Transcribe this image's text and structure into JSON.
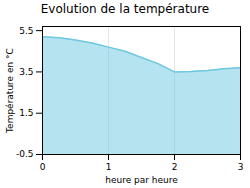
{
  "chart_data": {
    "type": "area",
    "title": "Evolution de la température",
    "xlabel": "heure par heure",
    "ylabel": "Température en °C",
    "x": [
      0,
      0.25,
      0.5,
      0.75,
      1.0,
      1.25,
      1.5,
      1.75,
      2.0,
      2.25,
      2.5,
      2.75,
      3.0
    ],
    "y": [
      5.2,
      5.15,
      5.05,
      4.9,
      4.7,
      4.5,
      4.2,
      3.9,
      3.5,
      3.52,
      3.57,
      3.65,
      3.7
    ],
    "color": "#6cc8e0",
    "xlim": [
      0,
      3
    ],
    "ylim": [
      -0.5,
      5.7
    ],
    "xticks": [
      0,
      1,
      2,
      3
    ],
    "yticks": [
      -0.5,
      1.5,
      3.5,
      5.5
    ],
    "grid": "x"
  }
}
